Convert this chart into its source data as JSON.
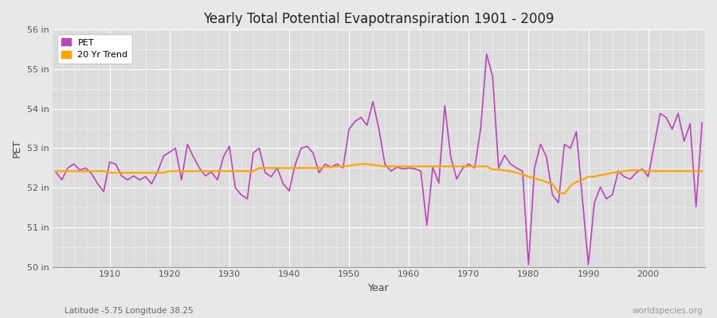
{
  "title": "Yearly Total Potential Evapotranspiration 1901 - 2009",
  "xlabel": "Year",
  "ylabel": "PET",
  "subtitle_left": "Latitude -5.75 Longitude 38.25",
  "subtitle_right": "worldspecies.org",
  "pet_color": "#bb44bb",
  "trend_color": "#ffa500",
  "bg_color": "#e8e8e8",
  "plot_bg_color": "#dcdcdc",
  "ylim": [
    50,
    56
  ],
  "yticks": [
    50,
    51,
    52,
    53,
    54,
    55,
    56
  ],
  "ytick_labels": [
    "50 in",
    "51 in",
    "52 in",
    "53 in",
    "54 in",
    "55 in",
    "56 in"
  ],
  "years": [
    1901,
    1902,
    1903,
    1904,
    1905,
    1906,
    1907,
    1908,
    1909,
    1910,
    1911,
    1912,
    1913,
    1914,
    1915,
    1916,
    1917,
    1918,
    1919,
    1920,
    1921,
    1922,
    1923,
    1924,
    1925,
    1926,
    1927,
    1928,
    1929,
    1930,
    1931,
    1932,
    1933,
    1934,
    1935,
    1936,
    1937,
    1938,
    1939,
    1940,
    1941,
    1942,
    1943,
    1944,
    1945,
    1946,
    1947,
    1948,
    1949,
    1950,
    1951,
    1952,
    1953,
    1954,
    1955,
    1956,
    1957,
    1958,
    1959,
    1960,
    1961,
    1962,
    1963,
    1964,
    1965,
    1966,
    1967,
    1968,
    1969,
    1970,
    1971,
    1972,
    1973,
    1974,
    1975,
    1976,
    1977,
    1978,
    1979,
    1980,
    1981,
    1982,
    1983,
    1984,
    1985,
    1986,
    1987,
    1988,
    1989,
    1990,
    1991,
    1992,
    1993,
    1994,
    1995,
    1996,
    1997,
    1998,
    1999,
    2000,
    2001,
    2002,
    2003,
    2004,
    2005,
    2006,
    2007,
    2008,
    2009
  ],
  "pet_values": [
    52.4,
    52.2,
    52.5,
    52.6,
    52.45,
    52.5,
    52.35,
    52.1,
    51.9,
    52.65,
    52.6,
    52.3,
    52.2,
    52.3,
    52.2,
    52.28,
    52.1,
    52.4,
    52.8,
    52.9,
    53.0,
    52.2,
    53.1,
    52.78,
    52.5,
    52.3,
    52.4,
    52.2,
    52.78,
    53.05,
    52.0,
    51.82,
    51.72,
    52.88,
    53.0,
    52.38,
    52.28,
    52.5,
    52.1,
    51.92,
    52.58,
    53.0,
    53.05,
    52.88,
    52.38,
    52.6,
    52.52,
    52.6,
    52.5,
    53.48,
    53.68,
    53.78,
    53.58,
    54.18,
    53.48,
    52.6,
    52.42,
    52.52,
    52.48,
    52.5,
    52.48,
    52.42,
    51.05,
    52.52,
    52.12,
    54.08,
    52.78,
    52.22,
    52.5,
    52.6,
    52.5,
    53.5,
    55.38,
    54.82,
    52.5,
    52.82,
    52.6,
    52.5,
    52.42,
    50.05,
    52.5,
    53.1,
    52.78,
    51.82,
    51.62,
    53.1,
    53.0,
    53.42,
    51.72,
    50.05,
    51.62,
    52.02,
    51.72,
    51.82,
    52.42,
    52.28,
    52.22,
    52.38,
    52.48,
    52.28,
    53.08,
    53.88,
    53.78,
    53.48,
    53.88,
    53.18,
    53.62,
    51.52,
    53.65
  ],
  "trend_values": [
    52.42,
    52.42,
    52.42,
    52.42,
    52.42,
    52.42,
    52.42,
    52.42,
    52.42,
    52.38,
    52.38,
    52.38,
    52.38,
    52.38,
    52.38,
    52.38,
    52.38,
    52.38,
    52.38,
    52.42,
    52.42,
    52.42,
    52.42,
    52.42,
    52.42,
    52.42,
    52.42,
    52.42,
    52.42,
    52.42,
    52.42,
    52.42,
    52.42,
    52.42,
    52.5,
    52.5,
    52.5,
    52.5,
    52.5,
    52.5,
    52.5,
    52.5,
    52.5,
    52.5,
    52.5,
    52.52,
    52.52,
    52.54,
    52.54,
    52.56,
    52.58,
    52.6,
    52.6,
    52.58,
    52.56,
    52.54,
    52.54,
    52.54,
    52.54,
    52.54,
    52.54,
    52.54,
    52.54,
    52.54,
    52.54,
    52.54,
    52.54,
    52.54,
    52.54,
    52.54,
    52.54,
    52.54,
    52.54,
    52.46,
    52.46,
    52.44,
    52.42,
    52.38,
    52.34,
    52.28,
    52.24,
    52.2,
    52.14,
    52.1,
    51.88,
    51.85,
    52.05,
    52.15,
    52.2,
    52.28,
    52.28,
    52.32,
    52.34,
    52.38,
    52.4,
    52.42,
    52.44,
    52.44,
    52.44,
    52.42,
    52.42,
    52.42,
    52.42,
    52.42,
    52.42,
    52.42,
    52.42,
    52.42,
    52.42
  ]
}
